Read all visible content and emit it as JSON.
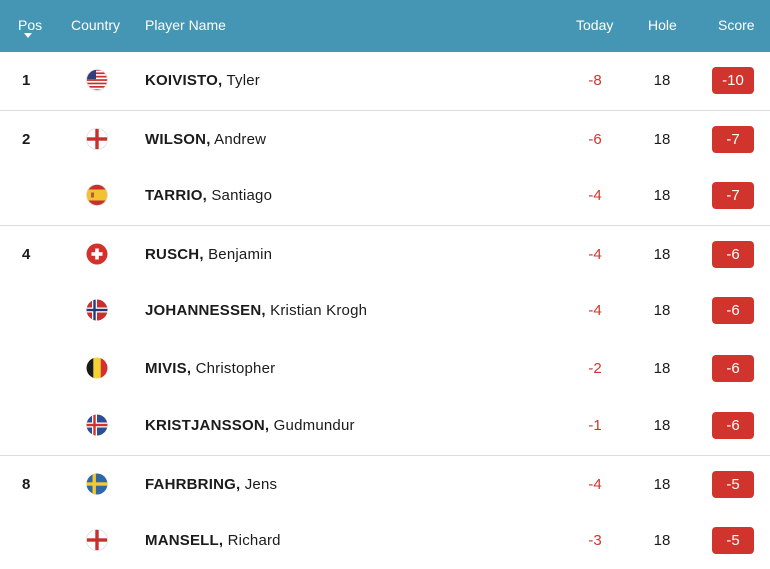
{
  "header": {
    "pos": "Pos",
    "country": "Country",
    "player": "Player Name",
    "today": "Today",
    "hole": "Hole",
    "score": "Score"
  },
  "colors": {
    "header_bg": "#4496b4",
    "under_par": "#d0342c",
    "divider": "#dcdcdc"
  },
  "rows": [
    {
      "pos": "1",
      "flag": "usa-flag-icon",
      "last": "KOIVISTO,",
      "first": "Tyler",
      "today": "-8",
      "hole": "18",
      "score": "-10"
    },
    {
      "pos": "2",
      "flag": "england-flag-icon",
      "last": "WILSON,",
      "first": "Andrew",
      "today": "-6",
      "hole": "18",
      "score": "-7"
    },
    {
      "pos": "",
      "flag": "spain-flag-icon",
      "last": "TARRIO,",
      "first": "Santiago",
      "today": "-4",
      "hole": "18",
      "score": "-7"
    },
    {
      "pos": "4",
      "flag": "switzerland-flag-icon",
      "last": "RUSCH,",
      "first": "Benjamin",
      "today": "-4",
      "hole": "18",
      "score": "-6"
    },
    {
      "pos": "",
      "flag": "norway-flag-icon",
      "last": "JOHANNESSEN,",
      "first": "Kristian Krogh",
      "today": "-4",
      "hole": "18",
      "score": "-6"
    },
    {
      "pos": "",
      "flag": "belgium-flag-icon",
      "last": "MIVIS,",
      "first": "Christopher",
      "today": "-2",
      "hole": "18",
      "score": "-6"
    },
    {
      "pos": "",
      "flag": "iceland-flag-icon",
      "last": "KRISTJANSSON,",
      "first": "Gudmundur",
      "today": "-1",
      "hole": "18",
      "score": "-6"
    },
    {
      "pos": "8",
      "flag": "sweden-flag-icon",
      "last": "FAHRBRING,",
      "first": "Jens",
      "today": "-4",
      "hole": "18",
      "score": "-5"
    },
    {
      "pos": "",
      "flag": "england-flag-icon",
      "last": "MANSELL,",
      "first": "Richard",
      "today": "-3",
      "hole": "18",
      "score": "-5"
    }
  ]
}
